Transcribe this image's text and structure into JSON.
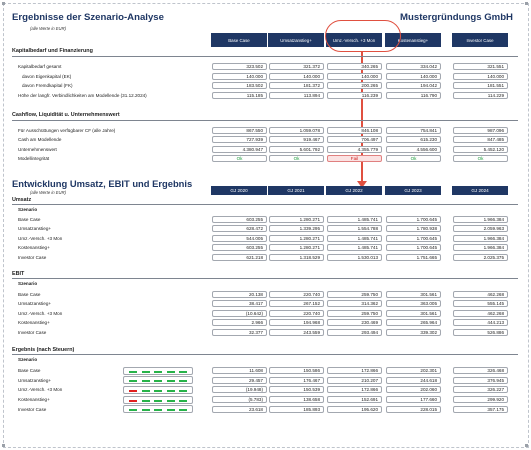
{
  "header": {
    "title": "Ergebnisse der Szenario-Analyse",
    "company": "Mustergründungs GmbH",
    "unit_note": "(alle Werte in EUR)"
  },
  "scenarios": [
    "Base Case",
    "Umsatzanstieg+",
    "Umz.-Versch. +3 Mon",
    "Kostenanstieg+",
    "Investor Case"
  ],
  "kapitalbedarf": {
    "section": "Kapitalbedarf und Finanzierung",
    "rows": [
      {
        "label": "Kapitalbedarf gesamt",
        "values": [
          "323.502",
          "321.372",
          "340.265",
          "334.042",
          "321.551"
        ]
      },
      {
        "label": "davon Eigenkapital (EK)",
        "values": [
          "140.000",
          "140.000",
          "140.000",
          "140.000",
          "140.000"
        ]
      },
      {
        "label": "davon Fremdkapital (FK)",
        "values": [
          "183.502",
          "181.372",
          "200.265",
          "194.042",
          "181.551"
        ]
      },
      {
        "label": "Höhe der langfr. Verbindlichkeiten am Modellende (31.12.2024)",
        "values": [
          "115.185",
          "113.894",
          "116.239",
          "116.790",
          "114.229"
        ]
      }
    ]
  },
  "cashflow": {
    "section": "Cashflow, Liquidität u. Unternehmenswert",
    "rows": [
      {
        "label": "Für Ausschüttungen verfügbarer CF (alle Jahre)",
        "values": [
          "867.550",
          "1.059.078",
          "846.108",
          "754.841",
          "987.096"
        ]
      },
      {
        "label": "Cash am Modellende",
        "values": [
          "727.939",
          "919.467",
          "706.497",
          "615.230",
          "847.485"
        ]
      },
      {
        "label": "Unternehmenswert",
        "values": [
          "4.380.947",
          "5.601.792",
          "4.355.779",
          "4.556.600",
          "5.452.120"
        ]
      }
    ],
    "integrity_label": "Modellintegrität",
    "integrity": [
      "Ok",
      "Ok",
      "Fail",
      "Ok",
      "Ok"
    ]
  },
  "development": {
    "title": "Entwicklung Umsatz, EBIT und Ergebnis",
    "unit_note": "(alle Werte in EUR)",
    "years": [
      "GJ 2020",
      "GJ 2021",
      "GJ 2022",
      "GJ 2023",
      "GJ 2024"
    ],
    "scenario_label": "Szenario",
    "umsatz": {
      "section": "Umsatz",
      "rows": [
        {
          "label": "Base Case",
          "values": [
            "603.255",
            "1.280.271",
            "1.485.741",
            "1.700.645",
            "1.966.384"
          ]
        },
        {
          "label": "Umsatzanstieg+",
          "values": [
            "628.472",
            "1.339.295",
            "1.554.788",
            "1.780.938",
            "2.059.963"
          ]
        },
        {
          "label": "Umz.-Versch. +3 Mon",
          "values": [
            "544.005",
            "1.280.271",
            "1.485.741",
            "1.700.645",
            "1.966.384"
          ]
        },
        {
          "label": "Kostenanstieg+",
          "values": [
            "603.255",
            "1.280.271",
            "1.485.741",
            "1.700.645",
            "1.966.384"
          ]
        },
        {
          "label": "Investor Case",
          "values": [
            "621.218",
            "1.318.529",
            "1.530.013",
            "1.751.665",
            "2.025.375"
          ]
        }
      ]
    },
    "ebit": {
      "section": "EBIT",
      "rows": [
        {
          "label": "Base Case",
          "values": [
            "20.138",
            "220.740",
            "259.750",
            "301.561",
            "462.268"
          ]
        },
        {
          "label": "Umsatzanstieg+",
          "values": [
            "38.417",
            "267.152",
            "314.362",
            "363.005",
            "555.145"
          ]
        },
        {
          "label": "Umz.-Versch. +3 Mon",
          "values": [
            "(10.642)",
            "220.740",
            "259.750",
            "301.561",
            "462.268"
          ]
        },
        {
          "label": "Kostenanstieg+",
          "values": [
            "2.966",
            "194.968",
            "230.469",
            "265.964",
            "444.213"
          ]
        },
        {
          "label": "Investor Case",
          "values": [
            "32.377",
            "243.559",
            "293.494",
            "339.302",
            "526.886"
          ]
        }
      ]
    },
    "ergebnis": {
      "section": "Ergebnis (nach Steuern)",
      "rows": [
        {
          "label": "Base Case",
          "values": [
            "11.608",
            "150.586",
            "172.866",
            "202.301",
            "326.468"
          ],
          "spark": [
            "g",
            "g",
            "g",
            "g",
            "g"
          ]
        },
        {
          "label": "Umsatzanstieg+",
          "values": [
            "29.457",
            "176.467",
            "210.207",
            "244.618",
            "376.945"
          ],
          "spark": [
            "g",
            "g",
            "g",
            "g",
            "g"
          ]
        },
        {
          "label": "Umz.-Versch. +3 Mon",
          "values": [
            "(19.948)",
            "150.539",
            "172.866",
            "202.060",
            "326.227"
          ],
          "spark": [
            "r",
            "g",
            "g",
            "g",
            "g"
          ]
        },
        {
          "label": "Kostenanstieg+",
          "values": [
            "(5.783)",
            "138.658",
            "152.691",
            "177.660",
            "299.920"
          ],
          "spark": [
            "r",
            "g",
            "g",
            "g",
            "g"
          ]
        },
        {
          "label": "Investor Case",
          "values": [
            "23.618",
            "185.893",
            "195.620",
            "228.015",
            "357.175"
          ],
          "spark": [
            "g",
            "g",
            "g",
            "g",
            "g"
          ]
        }
      ]
    }
  },
  "colors": {
    "navy": "#1f3764",
    "accent": "#e05040",
    "ok": "#1a9a3a",
    "fail": "#d02020",
    "spark_green": "#27b34a",
    "spark_red": "#e02020"
  }
}
